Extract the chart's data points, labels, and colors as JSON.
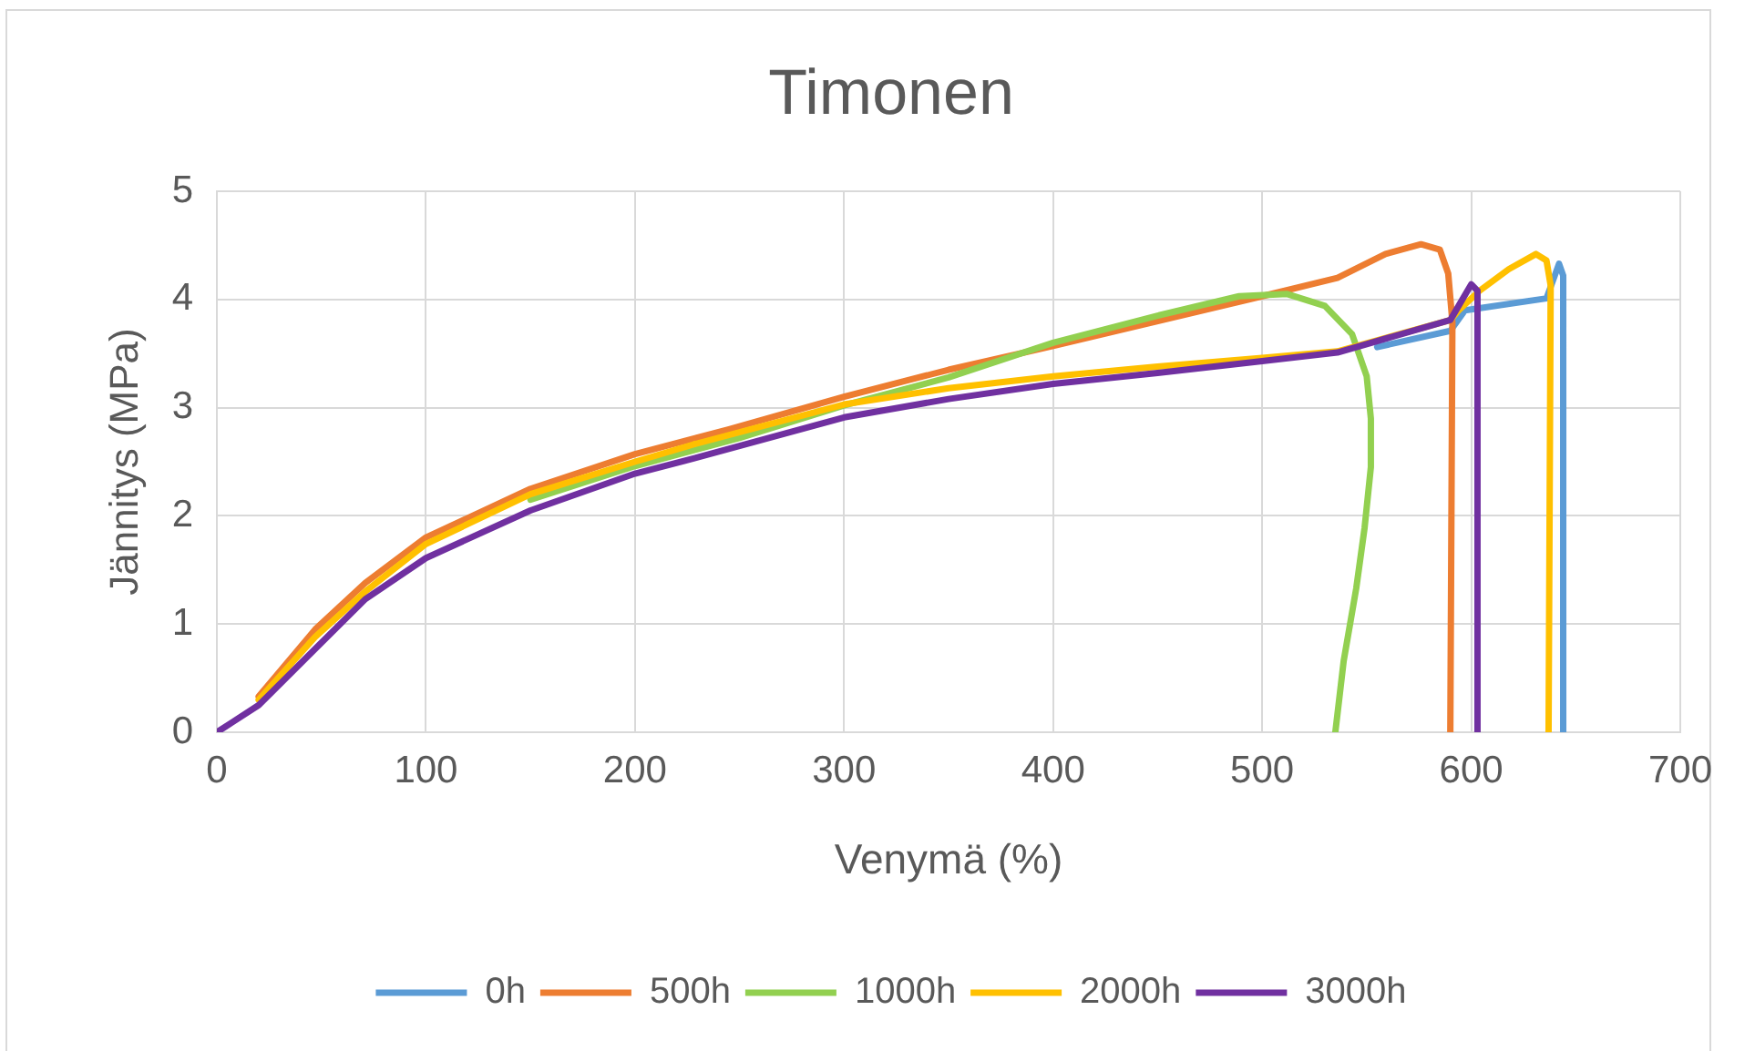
{
  "chart_data": {
    "type": "line",
    "title": "Timonen",
    "xlabel": "Venymä (%)",
    "ylabel": "Jännitys (MPa)",
    "xlim": [
      0,
      700
    ],
    "xticks": [
      0,
      100,
      200,
      300,
      400,
      500,
      600,
      700
    ],
    "ylim": [
      0,
      5
    ],
    "yticks": [
      0,
      1,
      2,
      3,
      4,
      5
    ],
    "grid": true,
    "legend": "bottom",
    "marker": "none",
    "line_style": "solid",
    "series": [
      {
        "name": "0h",
        "color": "#5b9bd5",
        "x": [
          555,
          590,
          597,
          636,
          642,
          644,
          644
        ],
        "values": [
          3.56,
          3.71,
          3.9,
          4.01,
          4.33,
          4.22,
          0
        ]
      },
      {
        "name": "500h",
        "color": "#ed7d31",
        "x": [
          20,
          47,
          71,
          100,
          150,
          200,
          245,
          300,
          350,
          400,
          450,
          500,
          536,
          559,
          576,
          585,
          589,
          591,
          590
        ],
        "values": [
          0.33,
          0.95,
          1.38,
          1.8,
          2.25,
          2.57,
          2.8,
          3.1,
          3.35,
          3.57,
          3.8,
          4.03,
          4.2,
          4.42,
          4.51,
          4.46,
          4.24,
          3.79,
          0
        ]
      },
      {
        "name": "1000h",
        "color": "#92d050",
        "x": [
          150,
          200,
          250,
          300,
          350,
          400,
          450,
          489,
          512,
          530,
          543,
          550,
          552,
          552,
          549,
          545,
          539,
          535
        ],
        "values": [
          2.15,
          2.46,
          2.72,
          3.02,
          3.28,
          3.6,
          3.85,
          4.03,
          4.05,
          3.94,
          3.68,
          3.29,
          2.9,
          2.45,
          1.89,
          1.33,
          0.66,
          0
        ]
      },
      {
        "name": "2000h",
        "color": "#ffc000",
        "x": [
          20,
          47,
          71,
          100,
          150,
          200,
          228,
          300,
          350,
          400,
          450,
          500,
          536,
          590,
          594,
          604,
          618,
          631,
          636,
          638,
          637
        ],
        "values": [
          0.3,
          0.88,
          1.3,
          1.74,
          2.2,
          2.5,
          2.66,
          3.03,
          3.18,
          3.29,
          3.38,
          3.46,
          3.52,
          3.81,
          3.9,
          4.08,
          4.28,
          4.42,
          4.36,
          4.13,
          0
        ]
      },
      {
        "name": "3000h",
        "color": "#7030a0",
        "x": [
          0,
          20,
          47,
          71,
          100,
          150,
          200,
          228,
          300,
          350,
          400,
          450,
          500,
          536,
          590,
          600,
          603,
          603
        ],
        "values": [
          0,
          0.25,
          0.77,
          1.23,
          1.61,
          2.05,
          2.39,
          2.53,
          2.91,
          3.08,
          3.22,
          3.32,
          3.43,
          3.51,
          3.81,
          4.14,
          4.08,
          0
        ]
      }
    ]
  }
}
